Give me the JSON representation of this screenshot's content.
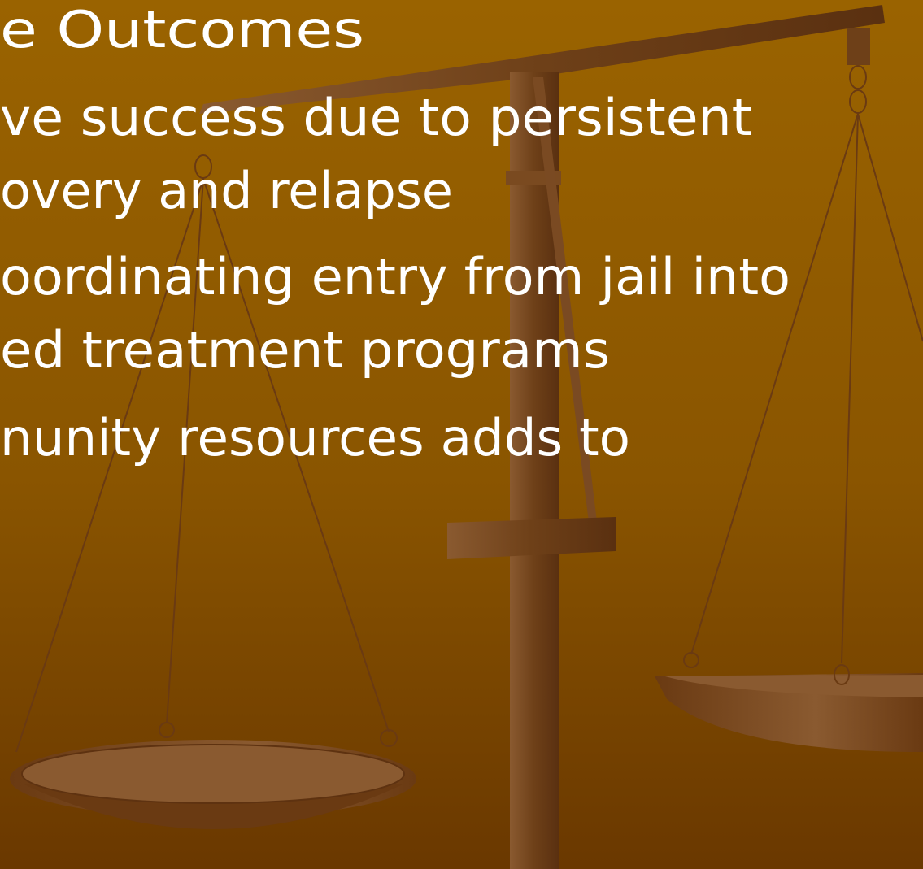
{
  "slide": {
    "title": "e Outcomes",
    "bullets": [
      [
        "ve success due to persistent",
        "overy and relapse"
      ],
      [
        "oordinating entry from jail into",
        "ed treatment programs"
      ],
      [
        "nunity resources adds to"
      ]
    ]
  }
}
